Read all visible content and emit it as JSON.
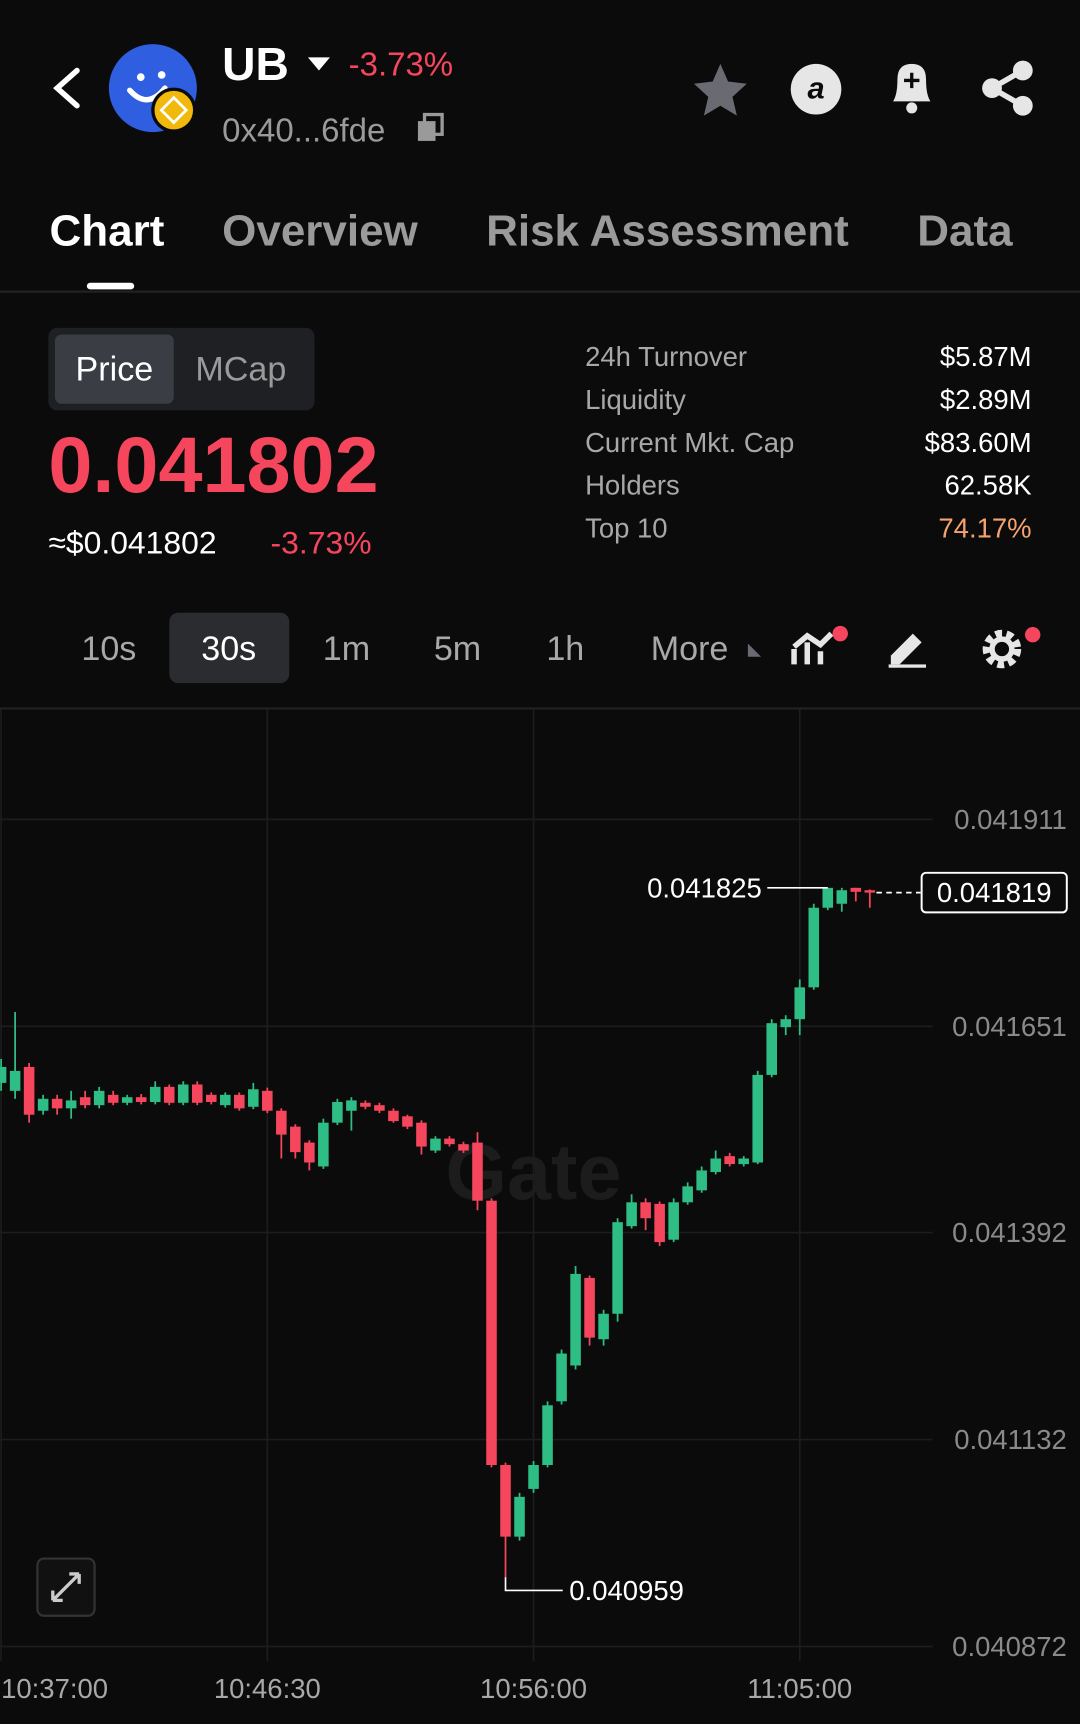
{
  "header": {
    "symbol": "UB",
    "change": "-3.73%",
    "address": "0x40...6fde"
  },
  "tabs": [
    "Chart",
    "Overview",
    "Risk Assessment",
    "Data"
  ],
  "toggle": [
    "Price",
    "MCap"
  ],
  "price": {
    "value": "0.041802",
    "usd": "≈$0.041802",
    "change": "-3.73%"
  },
  "stats": [
    {
      "label": "24h Turnover",
      "value": "$5.87M"
    },
    {
      "label": "Liquidity",
      "value": "$2.89M"
    },
    {
      "label": "Current Mkt. Cap",
      "value": "$83.60M"
    },
    {
      "label": "Holders",
      "value": "62.58K"
    },
    {
      "label": "Top 10",
      "value": "74.17%"
    }
  ],
  "intervals": [
    "10s",
    "30s",
    "1m",
    "5m",
    "1h",
    "More"
  ],
  "chart_data": {
    "type": "candlestick",
    "watermark": "Gate",
    "up_color": "#2ebd85",
    "down_color": "#f6465d",
    "categories": [
      "10:37:00",
      null,
      null,
      null,
      null,
      null,
      null,
      null,
      null,
      null,
      null,
      null,
      null,
      null,
      null,
      null,
      null,
      null,
      null,
      "10:46:30",
      null,
      null,
      null,
      null,
      null,
      null,
      null,
      null,
      null,
      null,
      null,
      null,
      null,
      null,
      null,
      null,
      null,
      null,
      "10:56:00",
      null,
      null,
      null,
      null,
      null,
      null,
      null,
      null,
      null,
      null,
      null,
      null,
      null,
      null,
      null,
      null,
      null,
      null,
      "11:05:00",
      null,
      null,
      null,
      null,
      null
    ],
    "open": [
      0.04158,
      0.04157,
      0.0416,
      0.041545,
      0.04156,
      0.041548,
      0.041562,
      0.041552,
      0.041565,
      0.041555,
      0.041562,
      0.041556,
      0.041575,
      0.041555,
      0.041578,
      0.041565,
      0.041552,
      0.041565,
      0.04155,
      0.04157,
      0.041545,
      0.041525,
      0.041505,
      0.041475,
      0.04153,
      0.041545,
      0.041555,
      0.041552,
      0.041545,
      0.041538,
      0.04153,
      0.041495,
      0.04151,
      0.041503,
      0.041505,
      0.041432,
      0.0411,
      0.04101,
      0.04107,
      0.0411,
      0.04118,
      0.041225,
      0.041335,
      0.041258,
      0.04129,
      0.0414,
      0.04143,
      0.041428,
      0.041383,
      0.04143,
      0.041445,
      0.041468,
      0.041488,
      0.041478,
      0.04148,
      0.04159,
      0.04165,
      0.04166,
      0.0417,
      0.0418,
      0.041805,
      0.041825,
      0.041822
    ],
    "high": [
      0.04161,
      0.041669,
      0.041605,
      0.041565,
      0.041565,
      0.04157,
      0.04157,
      0.041575,
      0.04157,
      0.041565,
      0.041566,
      0.041582,
      0.041578,
      0.041582,
      0.041582,
      0.041568,
      0.041568,
      0.041568,
      0.04158,
      0.041574,
      0.041548,
      0.041528,
      0.041508,
      0.041535,
      0.04156,
      0.041562,
      0.041558,
      0.041555,
      0.041548,
      0.04154,
      0.041533,
      0.041513,
      0.041513,
      0.041506,
      0.041518,
      0.041435,
      0.041103,
      0.041065,
      0.041105,
      0.04118,
      0.041245,
      0.04135,
      0.041338,
      0.041295,
      0.04141,
      0.04144,
      0.041435,
      0.041431,
      0.041435,
      0.041455,
      0.041475,
      0.041495,
      0.041492,
      0.041488,
      0.041595,
      0.04166,
      0.041665,
      0.04171,
      0.041805,
      0.041825,
      0.041825,
      0.041825,
      0.041823
    ],
    "low": [
      0.04157,
      0.04156,
      0.04153,
      0.04154,
      0.04154,
      0.041535,
      0.041548,
      0.041548,
      0.041552,
      0.041552,
      0.041553,
      0.041553,
      0.041552,
      0.041552,
      0.041552,
      0.041553,
      0.041549,
      0.041545,
      0.041547,
      0.041542,
      0.041485,
      0.041485,
      0.04147,
      0.041472,
      0.041527,
      0.04152,
      0.041547,
      0.041542,
      0.04153,
      0.041522,
      0.04149,
      0.041492,
      0.0415,
      0.041492,
      0.04142,
      0.041097,
      0.040959,
      0.041005,
      0.041065,
      0.041097,
      0.041176,
      0.04122,
      0.04125,
      0.04125,
      0.04128,
      0.041397,
      0.041395,
      0.041375,
      0.04138,
      0.041427,
      0.041442,
      0.041465,
      0.041475,
      0.041475,
      0.041478,
      0.041587,
      0.04164,
      0.04164,
      0.041697,
      0.041797,
      0.041795,
      0.041808,
      0.0418
    ],
    "close": [
      0.0416,
      0.041595,
      0.04154,
      0.04156,
      0.041548,
      0.041558,
      0.041552,
      0.04157,
      0.041555,
      0.041562,
      0.041556,
      0.041575,
      0.041555,
      0.041578,
      0.041555,
      0.041556,
      0.041565,
      0.041548,
      0.041572,
      0.041545,
      0.041515,
      0.041493,
      0.04148,
      0.04153,
      0.041556,
      0.041558,
      0.04155,
      0.041545,
      0.041532,
      0.041525,
      0.0415,
      0.04151,
      0.041503,
      0.041495,
      0.041432,
      0.0411,
      0.04101,
      0.04106,
      0.0411,
      0.041175,
      0.04124,
      0.04134,
      0.04126,
      0.04129,
      0.041405,
      0.04143,
      0.04141,
      0.04138,
      0.04143,
      0.04145,
      0.04147,
      0.041485,
      0.041478,
      0.041485,
      0.04159,
      0.041655,
      0.04166,
      0.0417,
      0.0418,
      0.041825,
      0.041822,
      0.04182,
      0.041819
    ],
    "ylim": [
      0.040854,
      0.042049
    ],
    "yticks": [
      0.041911,
      0.041651,
      0.041392,
      0.041132,
      0.040872
    ],
    "high_annotation": 0.041825,
    "low_annotation": 0.040959,
    "last_price": 0.041819
  }
}
